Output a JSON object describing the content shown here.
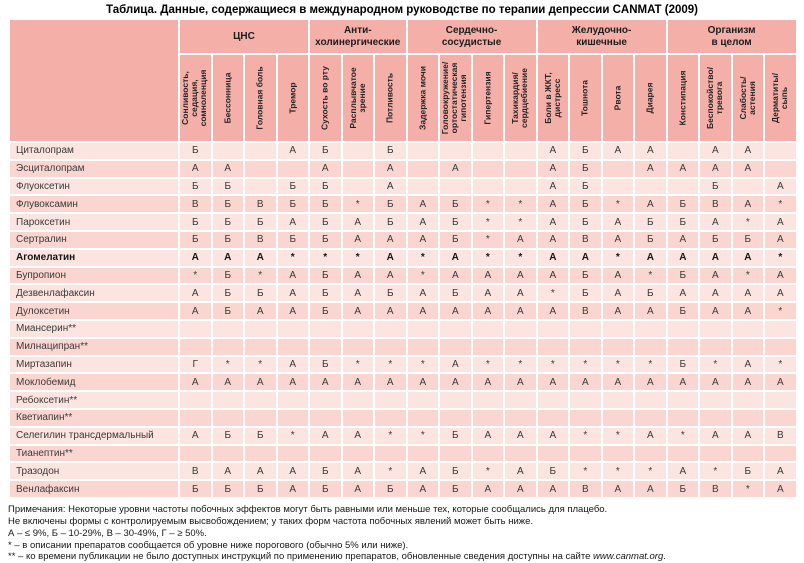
{
  "title": "Таблица. Данные, содержащиеся в международном руководстве по терапии депрессии CANMAT (2009)",
  "colors": {
    "header_bg": "#f4afa8",
    "row_light": "#fce4e0",
    "row_dark": "#fbd6d1",
    "grid": "#ffffff"
  },
  "table": {
    "corner_label": "",
    "groups": [
      {
        "label": "ЦНС",
        "span": 4
      },
      {
        "label": "Анти-\nхолинергические",
        "span": 3
      },
      {
        "label": "Сердечно-\nсосудистые",
        "span": 4
      },
      {
        "label": "Желудочно-\nкишечные",
        "span": 4
      },
      {
        "label": "Организм\nв целом",
        "span": 4
      }
    ],
    "columns": [
      "Сонливость,\nседация,\nсомноленция",
      "Бессонница",
      "Головная боль",
      "Тремор",
      "Сухость во рту",
      "Расплывчатое\nзрение",
      "Потливость",
      "Задержка мочи",
      "Головокружение/\nортостатическая\nгипотензия",
      "Гипертензия",
      "Тахикардия/\nсердцебиение",
      "Боли в ЖКТ,\nдистресс",
      "Тошнота",
      "Рвота",
      "Диарея",
      "Констипация",
      "Беспокойство/\nтревога",
      "Слабость/\nастения",
      "Дерматиты/\nсыпь"
    ],
    "rows": [
      {
        "name": "Циталопрам",
        "bold": false,
        "values": [
          "Б",
          "",
          "",
          "А",
          "Б",
          "",
          "Б",
          "",
          "",
          "",
          "",
          "А",
          "Б",
          "А",
          "А",
          "",
          "А",
          "А",
          ""
        ]
      },
      {
        "name": "Эсциталопрам",
        "bold": false,
        "values": [
          "А",
          "А",
          "",
          "",
          "А",
          "",
          "А",
          "",
          "А",
          "",
          "",
          "А",
          "Б",
          "",
          "А",
          "А",
          "А",
          "А",
          ""
        ]
      },
      {
        "name": "Флуоксетин",
        "bold": false,
        "values": [
          "Б",
          "Б",
          "",
          "Б",
          "Б",
          "",
          "А",
          "",
          "",
          "",
          "",
          "А",
          "Б",
          "",
          "",
          "",
          "Б",
          "",
          "А"
        ]
      },
      {
        "name": "Флувоксамин",
        "bold": false,
        "values": [
          "В",
          "Б",
          "В",
          "Б",
          "Б",
          "*",
          "Б",
          "А",
          "Б",
          "*",
          "*",
          "А",
          "Б",
          "*",
          "А",
          "Б",
          "В",
          "А",
          "*"
        ]
      },
      {
        "name": "Пароксетин",
        "bold": false,
        "values": [
          "Б",
          "Б",
          "Б",
          "А",
          "Б",
          "А",
          "Б",
          "А",
          "Б",
          "*",
          "*",
          "А",
          "Б",
          "А",
          "Б",
          "Б",
          "А",
          "*",
          "А"
        ]
      },
      {
        "name": "Сертралин",
        "bold": false,
        "values": [
          "Б",
          "Б",
          "В",
          "Б",
          "Б",
          "А",
          "А",
          "А",
          "Б",
          "*",
          "А",
          "А",
          "В",
          "А",
          "Б",
          "А",
          "Б",
          "Б",
          "А"
        ]
      },
      {
        "name": "Агомелатин",
        "bold": true,
        "values": [
          "А",
          "А",
          "А",
          "*",
          "*",
          "*",
          "А",
          "*",
          "А",
          "*",
          "*",
          "А",
          "А",
          "*",
          "А",
          "А",
          "А",
          "А",
          "*"
        ]
      },
      {
        "name": "Бупропион",
        "bold": false,
        "values": [
          "*",
          "Б",
          "*",
          "А",
          "Б",
          "А",
          "А",
          "*",
          "А",
          "А",
          "А",
          "А",
          "Б",
          "А",
          "*",
          "Б",
          "А",
          "*",
          "А"
        ]
      },
      {
        "name": "Дезвенлафаксин",
        "bold": false,
        "values": [
          "А",
          "Б",
          "Б",
          "А",
          "Б",
          "А",
          "Б",
          "А",
          "Б",
          "А",
          "А",
          "*",
          "Б",
          "А",
          "Б",
          "А",
          "А",
          "А",
          "А"
        ]
      },
      {
        "name": "Дулоксетин",
        "bold": false,
        "values": [
          "А",
          "Б",
          "А",
          "А",
          "Б",
          "А",
          "А",
          "А",
          "А",
          "А",
          "А",
          "А",
          "В",
          "А",
          "А",
          "Б",
          "А",
          "А",
          "*"
        ]
      },
      {
        "name": "Миансерин**",
        "bold": false,
        "values": [
          "",
          "",
          "",
          "",
          "",
          "",
          "",
          "",
          "",
          "",
          "",
          "",
          "",
          "",
          "",
          "",
          "",
          "",
          ""
        ]
      },
      {
        "name": "Милнаципран**",
        "bold": false,
        "values": [
          "",
          "",
          "",
          "",
          "",
          "",
          "",
          "",
          "",
          "",
          "",
          "",
          "",
          "",
          "",
          "",
          "",
          "",
          ""
        ]
      },
      {
        "name": "Миртазапин",
        "bold": false,
        "values": [
          "Г",
          "*",
          "*",
          "А",
          "Б",
          "*",
          "*",
          "*",
          "А",
          "*",
          "*",
          "*",
          "*",
          "*",
          "*",
          "Б",
          "*",
          "А",
          "*"
        ]
      },
      {
        "name": "Моклобемид",
        "bold": false,
        "values": [
          "А",
          "А",
          "А",
          "А",
          "А",
          "А",
          "А",
          "А",
          "А",
          "А",
          "А",
          "А",
          "А",
          "А",
          "А",
          "А",
          "А",
          "А",
          "А"
        ]
      },
      {
        "name": "Ребоксетин**",
        "bold": false,
        "values": [
          "",
          "",
          "",
          "",
          "",
          "",
          "",
          "",
          "",
          "",
          "",
          "",
          "",
          "",
          "",
          "",
          "",
          "",
          ""
        ]
      },
      {
        "name": "Кветиапин**",
        "bold": false,
        "values": [
          "",
          "",
          "",
          "",
          "",
          "",
          "",
          "",
          "",
          "",
          "",
          "",
          "",
          "",
          "",
          "",
          "",
          "",
          ""
        ]
      },
      {
        "name": "Селегилин трансдермальный",
        "bold": false,
        "values": [
          "А",
          "Б",
          "Б",
          "*",
          "А",
          "А",
          "*",
          "*",
          "Б",
          "А",
          "А",
          "А",
          "*",
          "*",
          "А",
          "*",
          "А",
          "А",
          "В"
        ]
      },
      {
        "name": "Тианептин**",
        "bold": false,
        "values": [
          "",
          "",
          "",
          "",
          "",
          "",
          "",
          "",
          "",
          "",
          "",
          "",
          "",
          "",
          "",
          "",
          "",
          "",
          ""
        ]
      },
      {
        "name": "Тразодон",
        "bold": false,
        "values": [
          "В",
          "А",
          "А",
          "А",
          "Б",
          "А",
          "*",
          "А",
          "Б",
          "*",
          "А",
          "Б",
          "*",
          "*",
          "*",
          "А",
          "*",
          "Б",
          "А"
        ]
      },
      {
        "name": "Венлафаксин",
        "bold": false,
        "values": [
          "Б",
          "Б",
          "Б",
          "А",
          "Б",
          "А",
          "Б",
          "А",
          "Б",
          "А",
          "А",
          "А",
          "В",
          "А",
          "А",
          "Б",
          "В",
          "*",
          "А"
        ]
      }
    ]
  },
  "notes": [
    {
      "text": "Примечания: Некоторые уровни частоты побочных эффектов могут быть равными или меньше тех, которые сообщались для плацебо.",
      "link": "",
      "tail": ""
    },
    {
      "text": "Не включены формы с контролируемым высвобождением; у таких форм частота побочных явлений может быть ниже.",
      "link": "",
      "tail": ""
    },
    {
      "text": "А – ≤ 9%, Б – 10-29%, В – 30-49%, Г – ≥ 50%.",
      "link": "",
      "tail": ""
    },
    {
      "text": "* – в описании препаратов сообщается об уровне ниже порогового (обычно 5% или ниже).",
      "link": "",
      "tail": ""
    },
    {
      "text": "** – ко времени публикации не было доступных инструкций по применению препаратов, обновленные сведения доступны на сайте ",
      "link": "www.canmat.org",
      "tail": "."
    }
  ]
}
